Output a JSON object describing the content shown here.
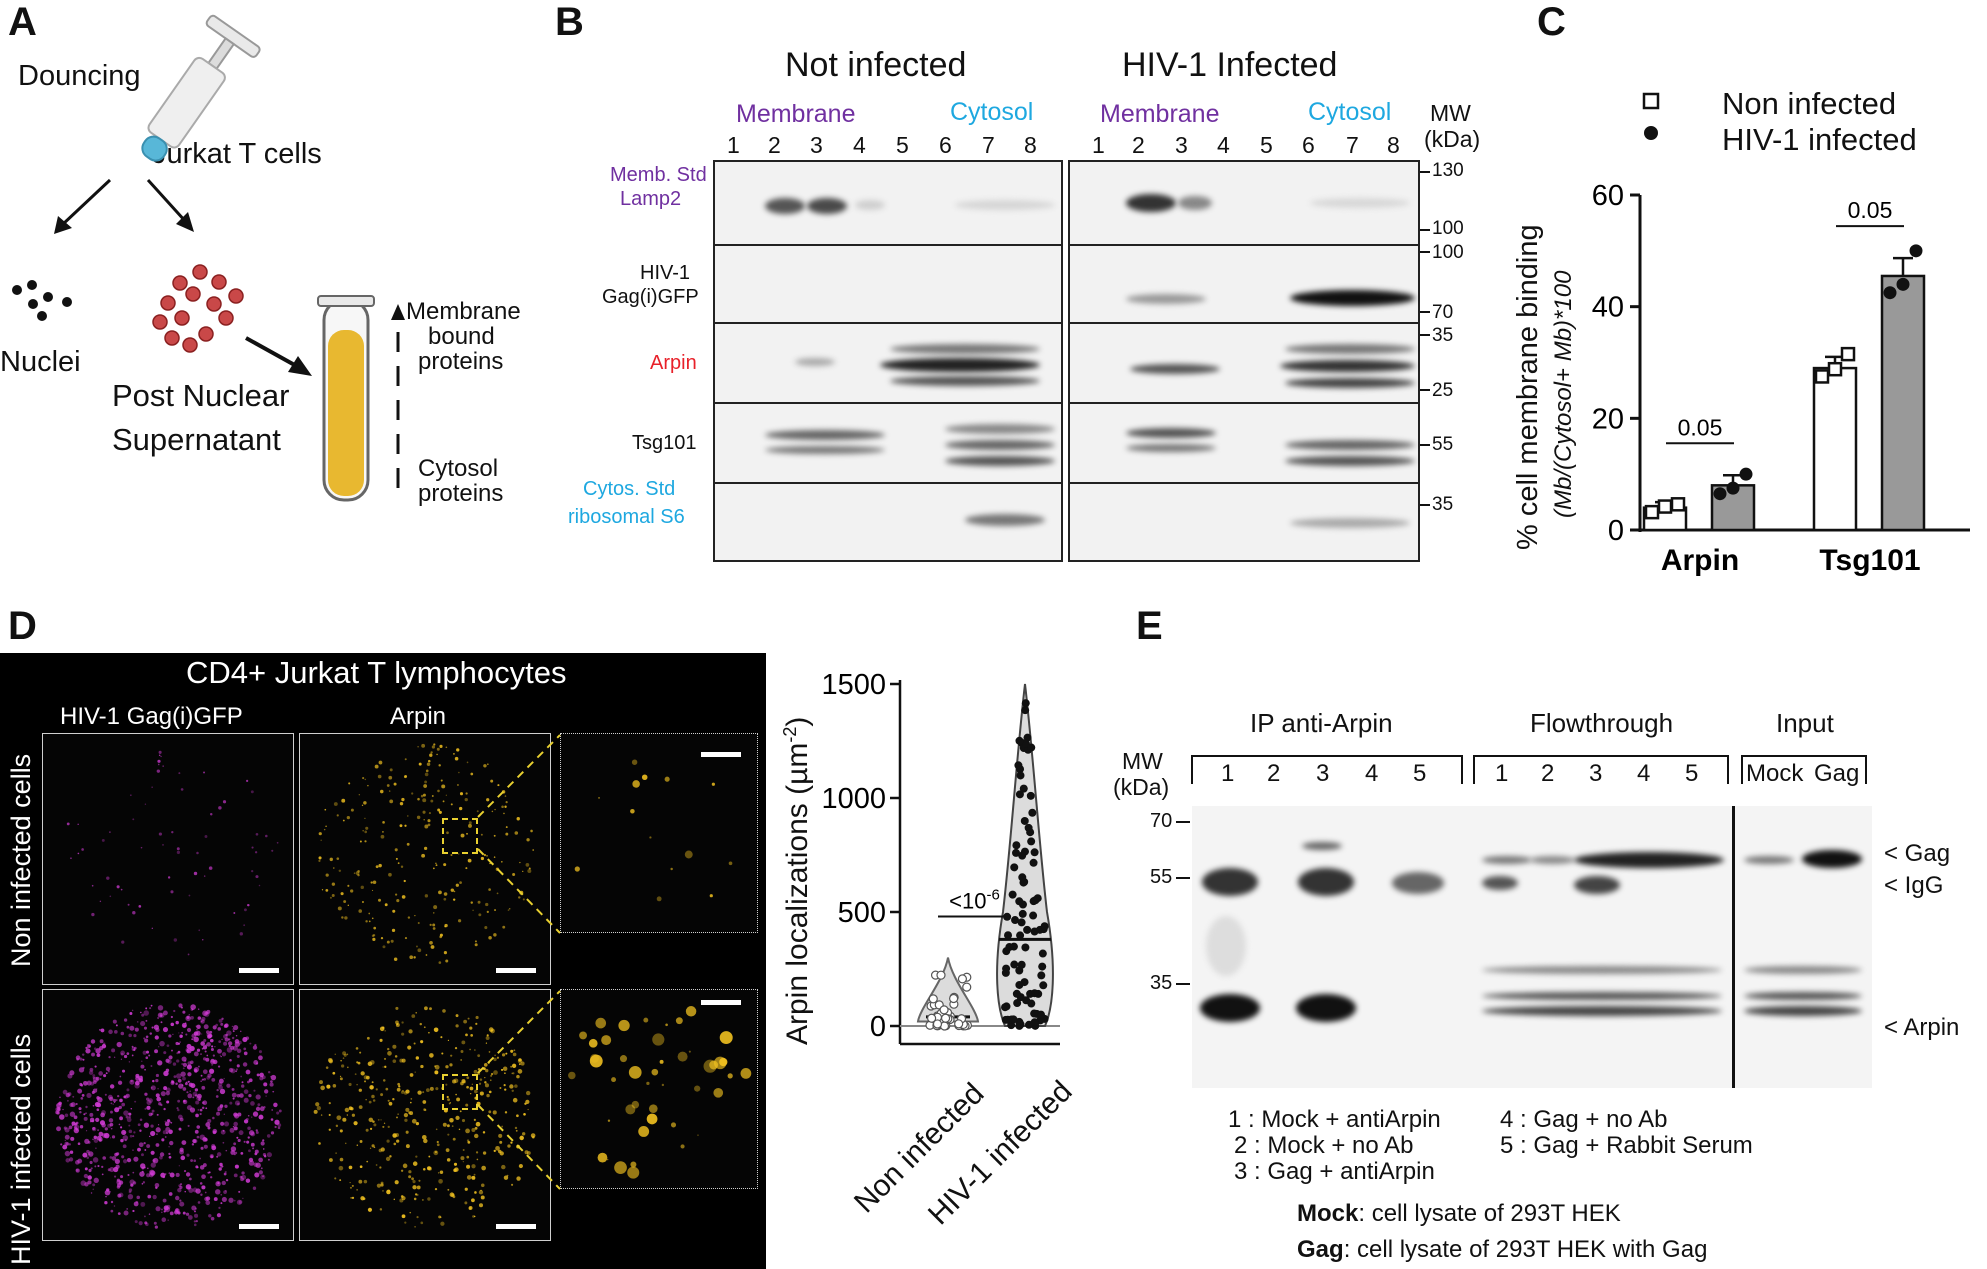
{
  "panelA": {
    "letter": "A",
    "douncing": "Douncing",
    "jurkat": "Jurkat T cells",
    "nuclei": "Nuclei",
    "post_nuclear_1": "Post Nuclear",
    "post_nuclear_2": "Supernatant",
    "membrane_1": "Membrane",
    "membrane_2": "bound",
    "membrane_3": "proteins",
    "cytosol_1": "Cytosol",
    "cytosol_2": "proteins",
    "colors": {
      "tube_fill": "#e8b830",
      "cells": "#c94848",
      "syringe_tip": "#58b7d8"
    }
  },
  "panelB": {
    "letter": "B",
    "group_left": "Not infected",
    "group_right": "HIV-1 Infected",
    "membrane": "Membrane",
    "cytosol": "Cytosol",
    "mw_1": "MW",
    "mw_2": "(kDa)",
    "lanes": [
      "1",
      "2",
      "3",
      "4",
      "5",
      "6",
      "7",
      "8"
    ],
    "rows": [
      {
        "label_1": "Memb. Std",
        "label_2": "Lamp2",
        "color": "#7030a0"
      },
      {
        "label_1": "HIV-1",
        "label_2": "Gag(i)GFP",
        "color": "#111111"
      },
      {
        "label_1": "Arpin",
        "label_2": "",
        "color": "#e8212a"
      },
      {
        "label_1": "Tsg101",
        "label_2": "",
        "color": "#111111"
      },
      {
        "label_1": "Cytos. Std",
        "label_2": "ribosomal S6",
        "color": "#1ea8e0"
      }
    ],
    "mw_marks": [
      "130",
      "100",
      "100",
      "70",
      "35",
      "25",
      "55",
      "35"
    ],
    "colors": {
      "membrane": "#7030a0",
      "cytosol": "#1ea8e0"
    }
  },
  "panelC": {
    "letter": "C",
    "legend": [
      "Non infected",
      "HIV-1 infected"
    ],
    "ylabel_1": "% cell membrane binding",
    "ylabel_2": "(Mb/(Cytosol+ Mb)*100",
    "p_values": [
      "0.05",
      "0.05"
    ]
  },
  "chart_data": [
    {
      "type": "bar",
      "categories": [
        "Arpin",
        "Tsg101"
      ],
      "series": [
        {
          "name": "Non infected",
          "values": [
            4,
            29
          ],
          "points": [
            [
              3.2,
              4.2,
              4.6
            ],
            [
              27.5,
              28.8,
              31.5
            ]
          ],
          "error": [
            1.0,
            2.0
          ]
        },
        {
          "name": "HIV-1 infected",
          "values": [
            8,
            45.5
          ],
          "points": [
            [
              6.5,
              7.5,
              10.0
            ],
            [
              42.5,
              44.0,
              50.0
            ]
          ],
          "error": [
            1.8,
            3.2
          ]
        }
      ],
      "ylim": [
        0,
        60
      ],
      "yticks": [
        0,
        20,
        40,
        60
      ],
      "ylabel": "% cell membrane binding (Mb/(Cytosol+ Mb)*100",
      "annotations": [
        "0.05",
        "0.05"
      ],
      "colors": {
        "Non infected": "#ffffff",
        "HIV-1 infected": "#999999"
      }
    },
    {
      "type": "scatter",
      "title": "",
      "categories": [
        "Non infected",
        "HIV-1 infected"
      ],
      "ylabel": "Arpin localizations (µm-2)",
      "ylim": [
        0,
        1500
      ],
      "yticks": [
        0,
        500,
        1000,
        1500
      ],
      "medians": [
        40,
        380
      ],
      "annotation": "<10-6"
    }
  ],
  "panelD": {
    "letter": "D",
    "title": "CD4+ Jurkat T lymphocytes",
    "col_1": "HIV-1 Gag(i)GFP",
    "col_2": "Arpin",
    "row_1": "Non infected cells",
    "row_2": "HIV-1 infected cells",
    "violin_ylabel": "Arpin localizations (µm",
    "violin_ylabel_sup": "-2",
    "violin_ylabel_end": ")",
    "x_labels": [
      "Non infected",
      "HIV-1 infected"
    ],
    "p_value": "<10",
    "p_value_sup": "-6",
    "colors": {
      "gag": "#d23bd6",
      "arpin": "#f0c020"
    }
  },
  "panelE": {
    "letter": "E",
    "group_1": "IP anti-Arpin",
    "group_2": "Flowthrough",
    "group_3": "Input",
    "mw_1": "MW",
    "mw_2": "(kDa)",
    "mw_marks": [
      "70",
      "55",
      "35"
    ],
    "lanes_ip": [
      "1",
      "2",
      "3",
      "4",
      "5"
    ],
    "lanes_ft": [
      "1",
      "2",
      "3",
      "4",
      "5"
    ],
    "lanes_input": [
      "Mock",
      "Gag"
    ],
    "markers": [
      "< Gag",
      "< IgG",
      "< Arpin"
    ],
    "legend": [
      "1 : Mock + antiArpin",
      "2 : Mock + no Ab",
      "3 : Gag + antiArpin",
      "4 : Gag + no Ab",
      "5 : Gag + Rabbit Serum"
    ],
    "mock_bold": "Mock",
    "mock_text": ": cell lysate of 293T HEK",
    "gag_bold": "Gag",
    "gag_text": ": cell lysate of 293T HEK with Gag"
  }
}
